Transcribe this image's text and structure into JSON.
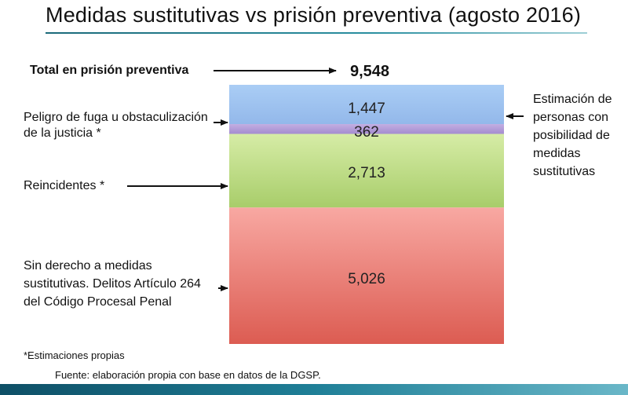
{
  "title": "Medidas sustitutivas vs prisión preventiva (agosto 2016)",
  "labels": {
    "total_label": "Total en prisión preventiva",
    "total_value": "9,548",
    "peligro": "Peligro de fuga u obstaculización de la justicia *",
    "reincidentes": "Reincidentes *",
    "sin_derecho": "Sin derecho a medidas sustitutivas. Delitos Artículo 264 del Código Procesal Penal",
    "estimacion": "Estimación de personas con posibilidad de medidas sustitutivas"
  },
  "footnotes": {
    "estimaciones": "*Estimaciones propias",
    "fuente": "Fuente: elaboración propia con base en datos de la DGSP."
  },
  "chart_data": {
    "type": "bar",
    "stacked": true,
    "title": "Medidas sustitutivas vs prisión preventiva (agosto 2016)",
    "total": 9548,
    "segments": [
      {
        "name": "Estimación de personas con posibilidad de medidas sustitutivas",
        "value": 1447,
        "label": "1,447",
        "color": "#a8c8f0"
      },
      {
        "name": "Peligro de fuga u obstaculización de la justicia *",
        "value": 362,
        "label": "362",
        "color": "#b4a0d8"
      },
      {
        "name": "Reincidentes *",
        "value": 2713,
        "label": "2,713",
        "color": "#bcdb84"
      },
      {
        "name": "Sin derecho a medidas sustitutivas. Delitos Artículo 264 del Código Procesal Penal",
        "value": 5026,
        "label": "5,026",
        "color": "#e8726a"
      }
    ]
  }
}
